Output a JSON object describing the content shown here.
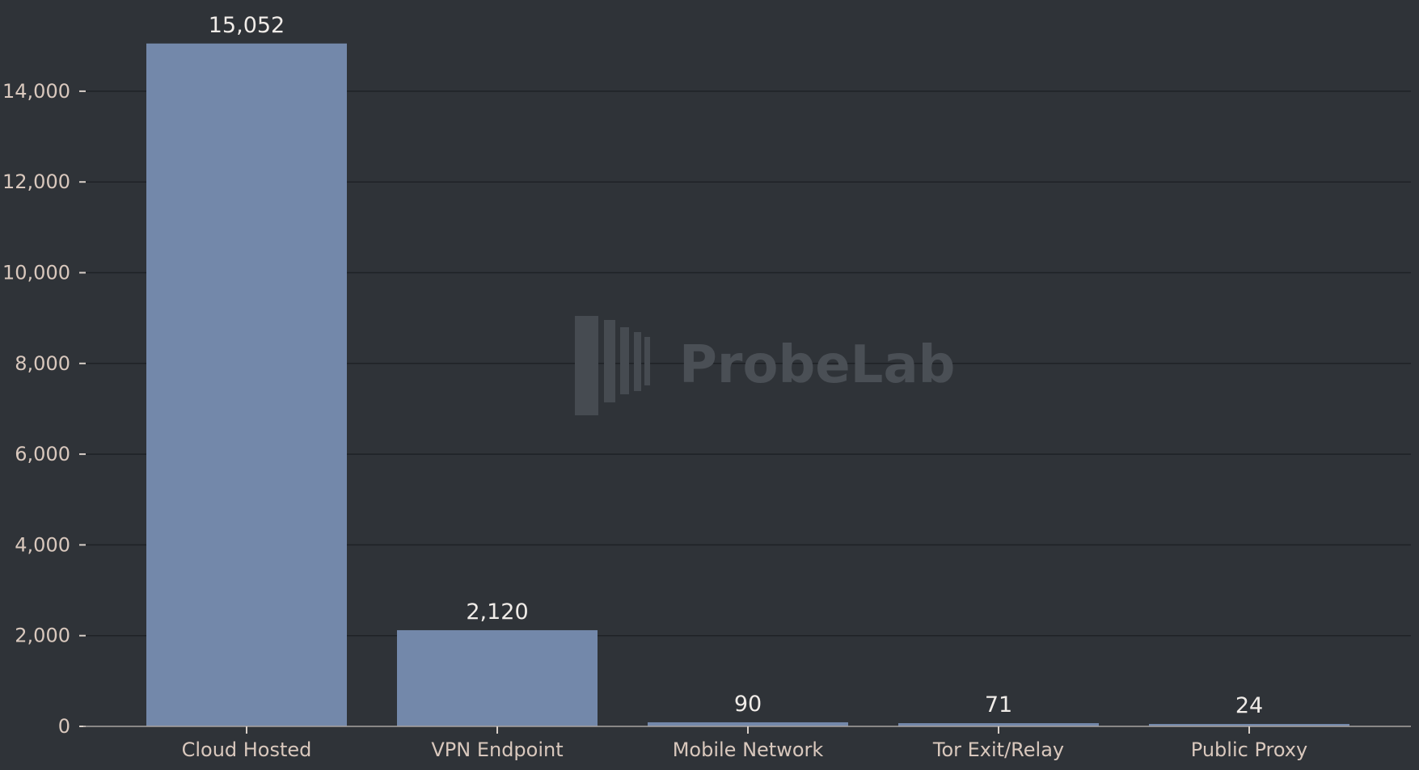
{
  "chart_data": {
    "type": "bar",
    "categories": [
      "Cloud Hosted",
      "VPN Endpoint",
      "Mobile Network",
      "Tor Exit/Relay",
      "Public Proxy"
    ],
    "values": [
      15052,
      2120,
      90,
      71,
      24
    ],
    "data_labels": [
      "15,052",
      "2,120",
      "90",
      "71",
      "24"
    ],
    "yticks": [
      0,
      2000,
      4000,
      6000,
      8000,
      10000,
      12000,
      14000
    ],
    "ytick_labels": [
      "0",
      "2,000",
      "4,000",
      "6,000",
      "8,000",
      "10,000",
      "12,000",
      "14,000"
    ],
    "ylim": [
      0,
      15500
    ],
    "grid": true,
    "bar_color": "#7388aa",
    "background_color": "#2f3338"
  },
  "watermark": {
    "text": "ProbeLab"
  }
}
